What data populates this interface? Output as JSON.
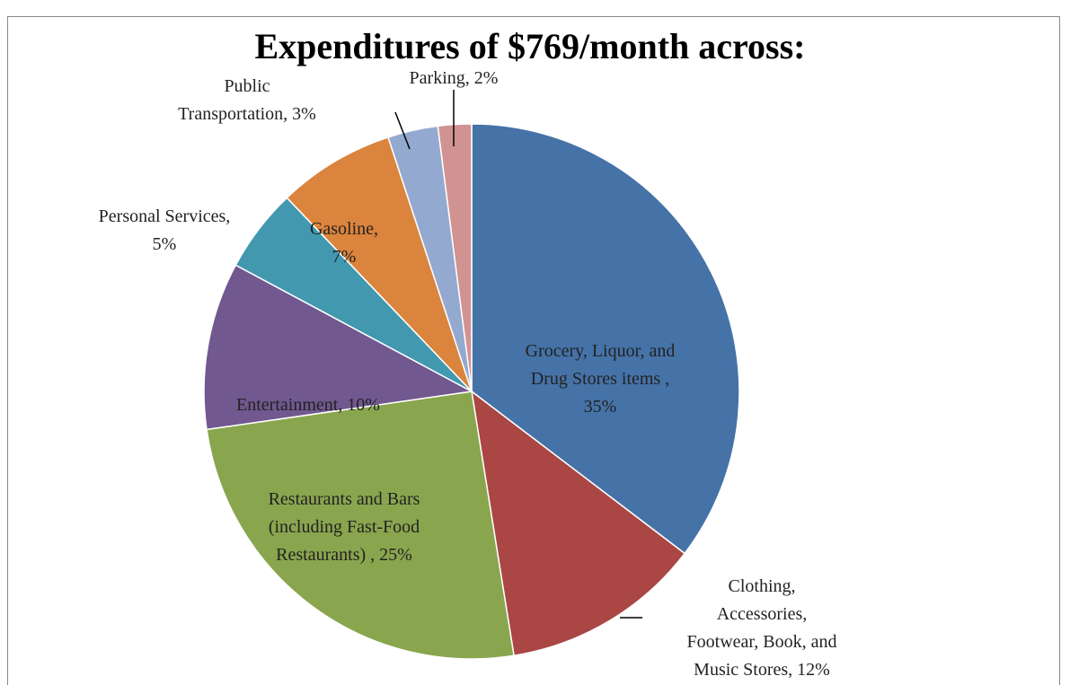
{
  "chart_data": {
    "type": "pie",
    "title": "Expenditures of $769/month across:",
    "values": [
      35,
      12,
      25,
      10,
      5,
      7,
      3,
      2
    ],
    "value_labels": [
      "Grocery, Liquor, and Drug Stores items , 35%",
      "Clothing, Accessories, Footwear, Book, and Music Stores, 12%",
      "Restaurants and Bars (including Fast-Food Restaurants) , 25%",
      "Entertainment, 10%",
      "Personal Services, 5%",
      "Gasoline, 7%",
      "Public Transportation, 3%",
      "Parking, 2%"
    ],
    "colors": [
      "#4572a7",
      "#aa4643",
      "#89a54e",
      "#71588f",
      "#4198af",
      "#db843d",
      "#93a9cf",
      "#d19392"
    ]
  }
}
